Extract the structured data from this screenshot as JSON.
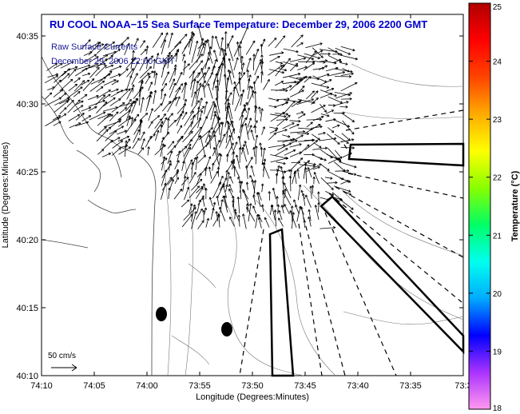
{
  "title": "RU COOL  NOAA−15  Sea Surface Temperature:  December 29, 2006 2200 GMT",
  "legend": {
    "line1": "Raw Surface Currents",
    "line2": "December 29, 2006 22:00 GMT"
  },
  "scale_label": "50 cm/s",
  "xlabel": "Longitude (Degrees:Minutes)",
  "ylabel": "Latitude (Degrees:Minutes)",
  "x_ticks": [
    "74:10",
    "74:05",
    "74:00",
    "73:55",
    "73:50",
    "73:45",
    "73:40",
    "73:35",
    "73:3"
  ],
  "y_ticks": [
    "40:35",
    "40:30",
    "40:25",
    "40:20",
    "40:15",
    "40:10"
  ],
  "colorbar": {
    "label": "Temperature (°C)",
    "ticks": [
      "25",
      "24",
      "23",
      "22",
      "21",
      "20",
      "19",
      "18"
    ],
    "min": 18,
    "max": 25,
    "colors": [
      "#ff99ee",
      "#aa33ff",
      "#0000ff",
      "#00aaff",
      "#00ffee",
      "#00ff66",
      "#88ff00",
      "#ffff00",
      "#ffaa00",
      "#ff4400",
      "#ff0000",
      "#b00000"
    ]
  },
  "colors": {
    "title": "#0000cc",
    "legend_text": "#1a1a99"
  }
}
